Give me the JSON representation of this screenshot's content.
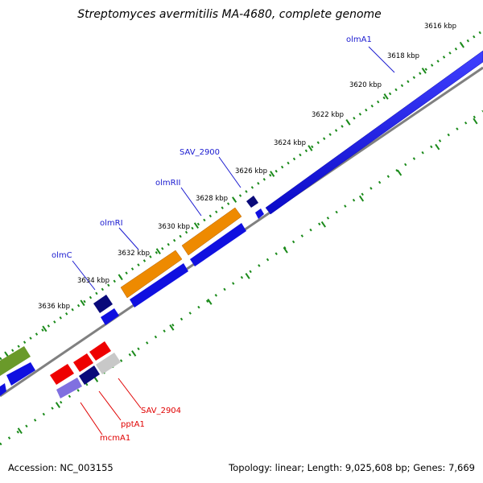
{
  "title": "Streptomyces avermitilis MA-4680, complete genome",
  "footer": {
    "accession": "Accession: NC_003155",
    "summary": "Topology: linear; Length: 9,025,608 bp; Genes: 7,669"
  },
  "ticks": [
    "3616 kbp",
    "3618 kbp",
    "3620 kbp",
    "3622 kbp",
    "3624 kbp",
    "3626 kbp",
    "3628 kbp",
    "3630 kbp",
    "3632 kbp",
    "3634 kbp",
    "3636 kbp"
  ],
  "gene_labels": {
    "olmA1": "olmA1",
    "sav2900": "SAV_2900",
    "olmRII": "olmRII",
    "olmRI": "olmRI",
    "olmC": "olmC",
    "sav2904": "SAV_2904",
    "pptA1": "pptA1",
    "mcmA1": "mcmA1"
  },
  "colors": {
    "blue": "#1010e0",
    "navy": "#0a0a7a",
    "orange": "#ee8a00",
    "red": "#ee0000",
    "green": "#6a9a2a",
    "gray": "#c8c8c8",
    "lavender": "#8070e0",
    "label_blue": "#1a1ad0",
    "label_red": "#e00000",
    "tick_green": "#1a8a1a",
    "backbone": "#808080"
  }
}
